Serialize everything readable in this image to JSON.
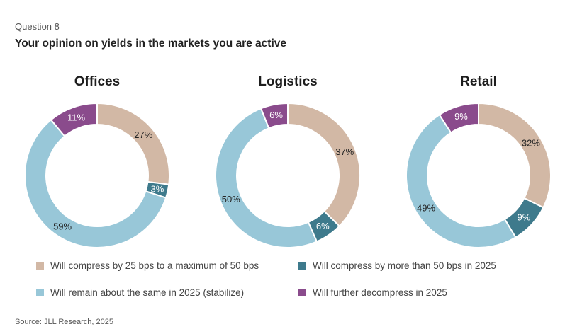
{
  "header": {
    "question_number": "Question 8",
    "question_title": "Your opinion on yields in the markets you are active"
  },
  "colors": {
    "compress_25_50": "#d2b8a5",
    "compress_more_50": "#3e7a8c",
    "remain_same": "#98c7d8",
    "further_decompress": "#8a4b8c"
  },
  "legend": {
    "items": [
      {
        "label": "Will compress by 25 bps to a maximum of 50 bps",
        "color": "#d2b8a5"
      },
      {
        "label": "Will compress by more than 50 bps in 2025",
        "color": "#3e7a8c"
      },
      {
        "label": "Will remain about the same in 2025 (stabilize)",
        "color": "#98c7d8"
      },
      {
        "label": "Will further decompress in 2025",
        "color": "#8a4b8c"
      }
    ]
  },
  "chart_data": [
    {
      "type": "pie",
      "title": "Offices",
      "categories": [
        "Will compress by 25 bps to a maximum of 50 bps",
        "Will compress by more than 50 bps in 2025",
        "Will remain about the same in 2025 (stabilize)",
        "Will further decompress in 2025"
      ],
      "values": [
        27,
        3,
        59,
        11
      ],
      "labels": [
        "27%",
        "3%",
        "59%",
        "11%"
      ]
    },
    {
      "type": "pie",
      "title": "Logistics",
      "categories": [
        "Will compress by 25 bps to a maximum of 50 bps",
        "Will compress by more than 50 bps in 2025",
        "Will remain about the same in 2025 (stabilize)",
        "Will further decompress in 2025"
      ],
      "values": [
        37,
        6,
        50,
        6
      ],
      "labels": [
        "37%",
        "6%",
        "50%",
        "6%"
      ]
    },
    {
      "type": "pie",
      "title": "Retail",
      "categories": [
        "Will compress by 25 bps to a maximum of 50 bps",
        "Will compress by more than 50 bps in 2025",
        "Will remain about the same in 2025 (stabilize)",
        "Will further decompress in 2025"
      ],
      "values": [
        32,
        9,
        49,
        9
      ],
      "labels": [
        "32%",
        "9%",
        "49%",
        "9%"
      ]
    }
  ],
  "footer": {
    "source": "Source: JLL Research, 2025"
  }
}
